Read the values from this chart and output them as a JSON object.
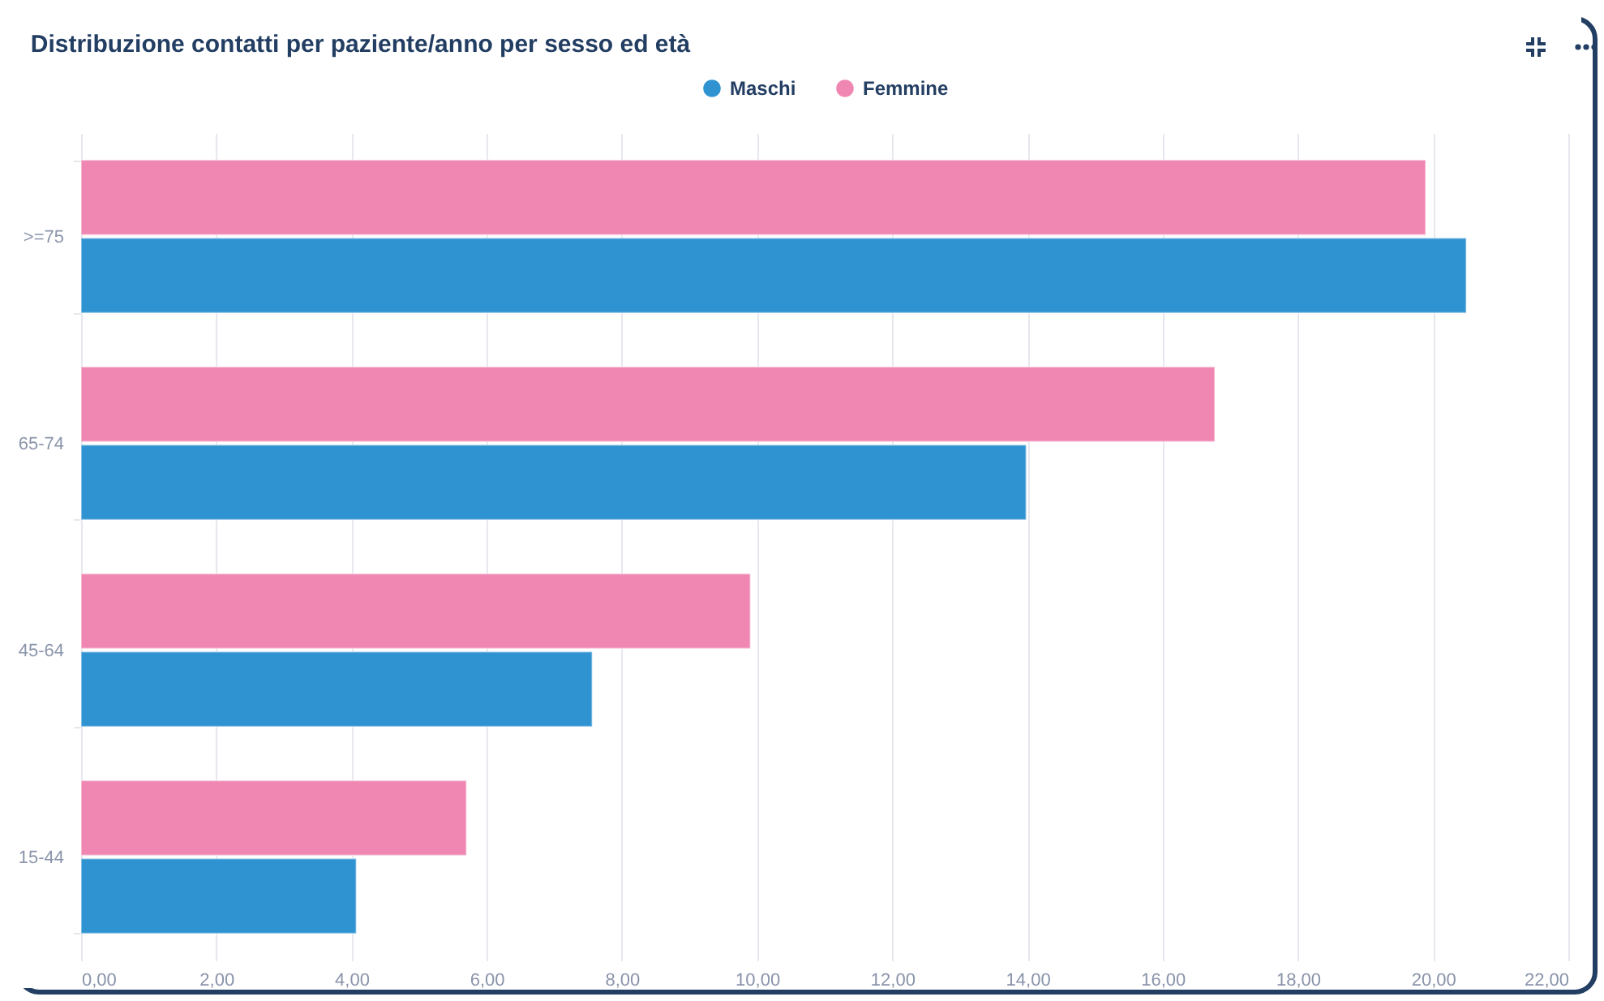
{
  "chart_data": {
    "type": "bar",
    "orientation": "horizontal",
    "title": "Distribuzione contatti per paziente/anno per sesso ed età",
    "categories": [
      ">=75",
      "65-74",
      "45-64",
      "15-44"
    ],
    "series": [
      {
        "name": "Maschi",
        "color": "#3093d1",
        "values": [
          20.49,
          13.98,
          7.56,
          4.07
        ]
      },
      {
        "name": "Femmine",
        "color": "#f087b3",
        "values": [
          19.89,
          16.77,
          9.9,
          5.7
        ]
      }
    ],
    "xlim": [
      0,
      22
    ],
    "xticks": [
      {
        "value": 0,
        "label": "0,00"
      },
      {
        "value": 2,
        "label": "2,00"
      },
      {
        "value": 4,
        "label": "4,00"
      },
      {
        "value": 6,
        "label": "6,00"
      },
      {
        "value": 8,
        "label": "8,00"
      },
      {
        "value": 10,
        "label": "10,00"
      },
      {
        "value": 12,
        "label": "12,00"
      },
      {
        "value": 14,
        "label": "14,00"
      },
      {
        "value": 16,
        "label": "16,00"
      },
      {
        "value": 18,
        "label": "18,00"
      },
      {
        "value": 20,
        "label": "20,00"
      },
      {
        "value": 22,
        "label": "22,00"
      }
    ],
    "grid": "x",
    "legend": "top"
  }
}
